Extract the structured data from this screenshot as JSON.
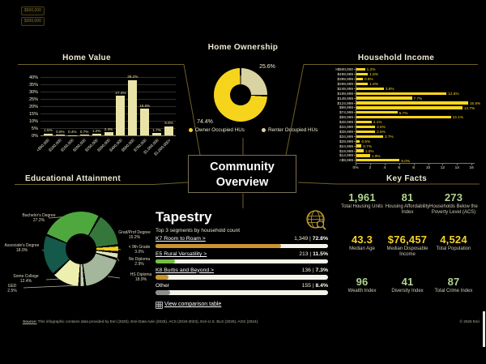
{
  "center": {
    "line1": "Community",
    "line2": "Overview"
  },
  "chips": [
    "$500,000",
    "$300,000"
  ],
  "colors": {
    "background": "#000000",
    "accent_line": "#6f6126",
    "cream": "#f0ead4",
    "yellow": "#f6d41c",
    "green_value": "#b0d392",
    "track": "#f4f2ea"
  },
  "chart_data": [
    {
      "id": "home_value",
      "type": "bar",
      "title": "Home Value",
      "ylim": [
        0,
        40
      ],
      "grid": true,
      "yticks": [
        "0%",
        "5%",
        "10%",
        "15%",
        "20%",
        "25%",
        "30%",
        "35%",
        "40%"
      ],
      "categories": [
        "<$50,000",
        "$100,000",
        "$150,000",
        "$200,000",
        "$250,000",
        "$300,000",
        "$400,000",
        "$500,000",
        "$750,000",
        "$1,000,000",
        "$1,000,000+"
      ],
      "values": [
        1.5,
        0.6,
        0.4,
        0.7,
        1.2,
        2.4,
        27.4,
        38.2,
        18.6,
        1.7,
        6.5
      ],
      "value_labels": [
        "1.5%",
        "0.6%",
        "0.4%",
        "0.7%",
        "1.2%",
        "2.4%",
        "27.4%",
        "38.2%",
        "18.6%",
        "1.7%",
        "6.5%"
      ],
      "bar_color": "#e9e3a7"
    },
    {
      "id": "home_ownership",
      "type": "pie",
      "title": "Home Ownership",
      "slices": [
        {
          "label": "Renter Occupied HUs",
          "value": 25.6,
          "value_label": "25.6%",
          "color": "#d9d3a4"
        },
        {
          "label": "Owner Occupied HUs",
          "value": 74.4,
          "value_label": "74.4%",
          "color": "#f6d41c"
        }
      ],
      "legend": [
        {
          "label": "Owner Occupied HUs",
          "color": "#f6d41c"
        },
        {
          "label": "Renter Occupied HUs",
          "color": "#d9d3a4"
        }
      ],
      "legend_position": "bottom"
    },
    {
      "id": "household_income",
      "type": "bar",
      "orientation": "horizontal",
      "title": "Household Income",
      "xlim": [
        0,
        16
      ],
      "xticks": [
        "0%",
        "2",
        "4",
        "6",
        "8",
        "10",
        "12",
        "14",
        "16"
      ],
      "categories": [
        ">$500,000",
        "$499,999",
        "$399,999",
        "$299,999",
        "$249,999",
        "$199,999",
        "$149,999",
        "$124,999",
        "$99,999",
        "$74,999",
        "$59,999",
        "$49,999",
        "$44,999",
        "$39,999",
        "$34,999",
        "$29,999",
        "$24,999",
        "$19,999",
        "$14,999",
        "<$9,999"
      ],
      "values": [
        1.2,
        1.6,
        0.9,
        1.6,
        3.8,
        12.5,
        7.7,
        15.5,
        14.7,
        5.7,
        13.1,
        2.1,
        2.6,
        2.6,
        3.7,
        0.5,
        0.7,
        1.0,
        1.9,
        6.0
      ],
      "value_labels": [
        "1.2%",
        "1.6%",
        "0.9%",
        "1.6%",
        "3.8%",
        "12.5%",
        "7.7%",
        "15.5%",
        "14.7%",
        "5.7%",
        "13.1%",
        "2.1%",
        "2.6%",
        "2.6%",
        "3.7%",
        "0.5%",
        "0.7%",
        "1.0%",
        "1.9%",
        "6.0%"
      ],
      "bar_color": "#fdd61c"
    },
    {
      "id": "educational_attainment",
      "type": "pie",
      "title": "Educational Attainment",
      "start_angle_deg": -68,
      "slices": [
        {
          "label": "Bachelor's Degree",
          "value": 27.2,
          "value_label": "27.2%",
          "color": "#4fa83d"
        },
        {
          "label": "Grad/Prof Degree",
          "value": 15.2,
          "value_label": "15.2%",
          "color": "#35773b"
        },
        {
          "label": "< 9th Grade",
          "value": 3.0,
          "value_label": "3.0%",
          "color": "#f2d01c"
        },
        {
          "label": "No Diploma",
          "value": 2.9,
          "value_label": "2.9%",
          "color": "#dfe3bd"
        },
        {
          "label": "HS Diploma",
          "value": 18.9,
          "value_label": "18.9%",
          "color": "#a4b69b"
        },
        {
          "label": "GED",
          "value": 2.5,
          "value_label": "2.5%",
          "color": "#c3cfae"
        },
        {
          "label": "Some College",
          "value": 12.4,
          "value_label": "12.4%",
          "color": "#ecefad"
        },
        {
          "label": "Associate's Degree",
          "value": 18.0,
          "value_label": "18.0%",
          "color": "#14594a"
        }
      ]
    }
  ],
  "tapestry": {
    "title": "Tapestry",
    "subtitle": "Top 3 segments by household count",
    "segments": [
      {
        "label": "K7 Room to Roam >",
        "count": "1,349",
        "pct": 72.8,
        "pct_label": "72.8%",
        "color": "#c9952f",
        "link": true
      },
      {
        "label": "E5 Rural Versatility >",
        "count": "213",
        "pct": 11.5,
        "pct_label": "11.5%",
        "color": "#74bf44",
        "link": true
      },
      {
        "label": "K8 Burbs and Beyond >",
        "count": "136",
        "pct": 7.3,
        "pct_label": "7.3%",
        "color": "#c9952f",
        "link": true
      },
      {
        "label": "Other",
        "count": "155",
        "pct": 8.4,
        "pct_label": "8.4%",
        "color": "#8f8f89",
        "link": false
      }
    ],
    "link_label": "View comparison table"
  },
  "key_facts": {
    "title": "Key Facts",
    "cells": [
      {
        "value": "1,961",
        "label": "Total Housing Units",
        "color": "green"
      },
      {
        "value": "81",
        "label": "Housing Affordability Index",
        "color": "green"
      },
      {
        "value": "273",
        "label": "Households Below the Poverty Level (ACS)",
        "color": "green"
      },
      {
        "value": "43.3",
        "label": "Median Age",
        "color": "yellow"
      },
      {
        "value": "$76,457",
        "label": "Median Disposable Income",
        "color": "yellow"
      },
      {
        "value": "4,524",
        "label": "Total Population",
        "color": "yellow"
      },
      {
        "value": "96",
        "label": "Wealth Index",
        "color": "green"
      },
      {
        "value": "41",
        "label": "Diversity Index",
        "color": "green"
      },
      {
        "value": "87",
        "label": "Total Crime Index",
        "color": "green"
      }
    ],
    "value_colors": {
      "green": "#b0d392",
      "yellow": "#f5d226"
    }
  },
  "footer": {
    "source_prefix": "Source:",
    "source_text": " This infographic contains data provided by Esri (2025), Esri-Data Axle (2025), ACS (2019-2023), Esri-U.S. BLS (2025), AGS (2024).",
    "copyright": "© 2026 Esri"
  }
}
